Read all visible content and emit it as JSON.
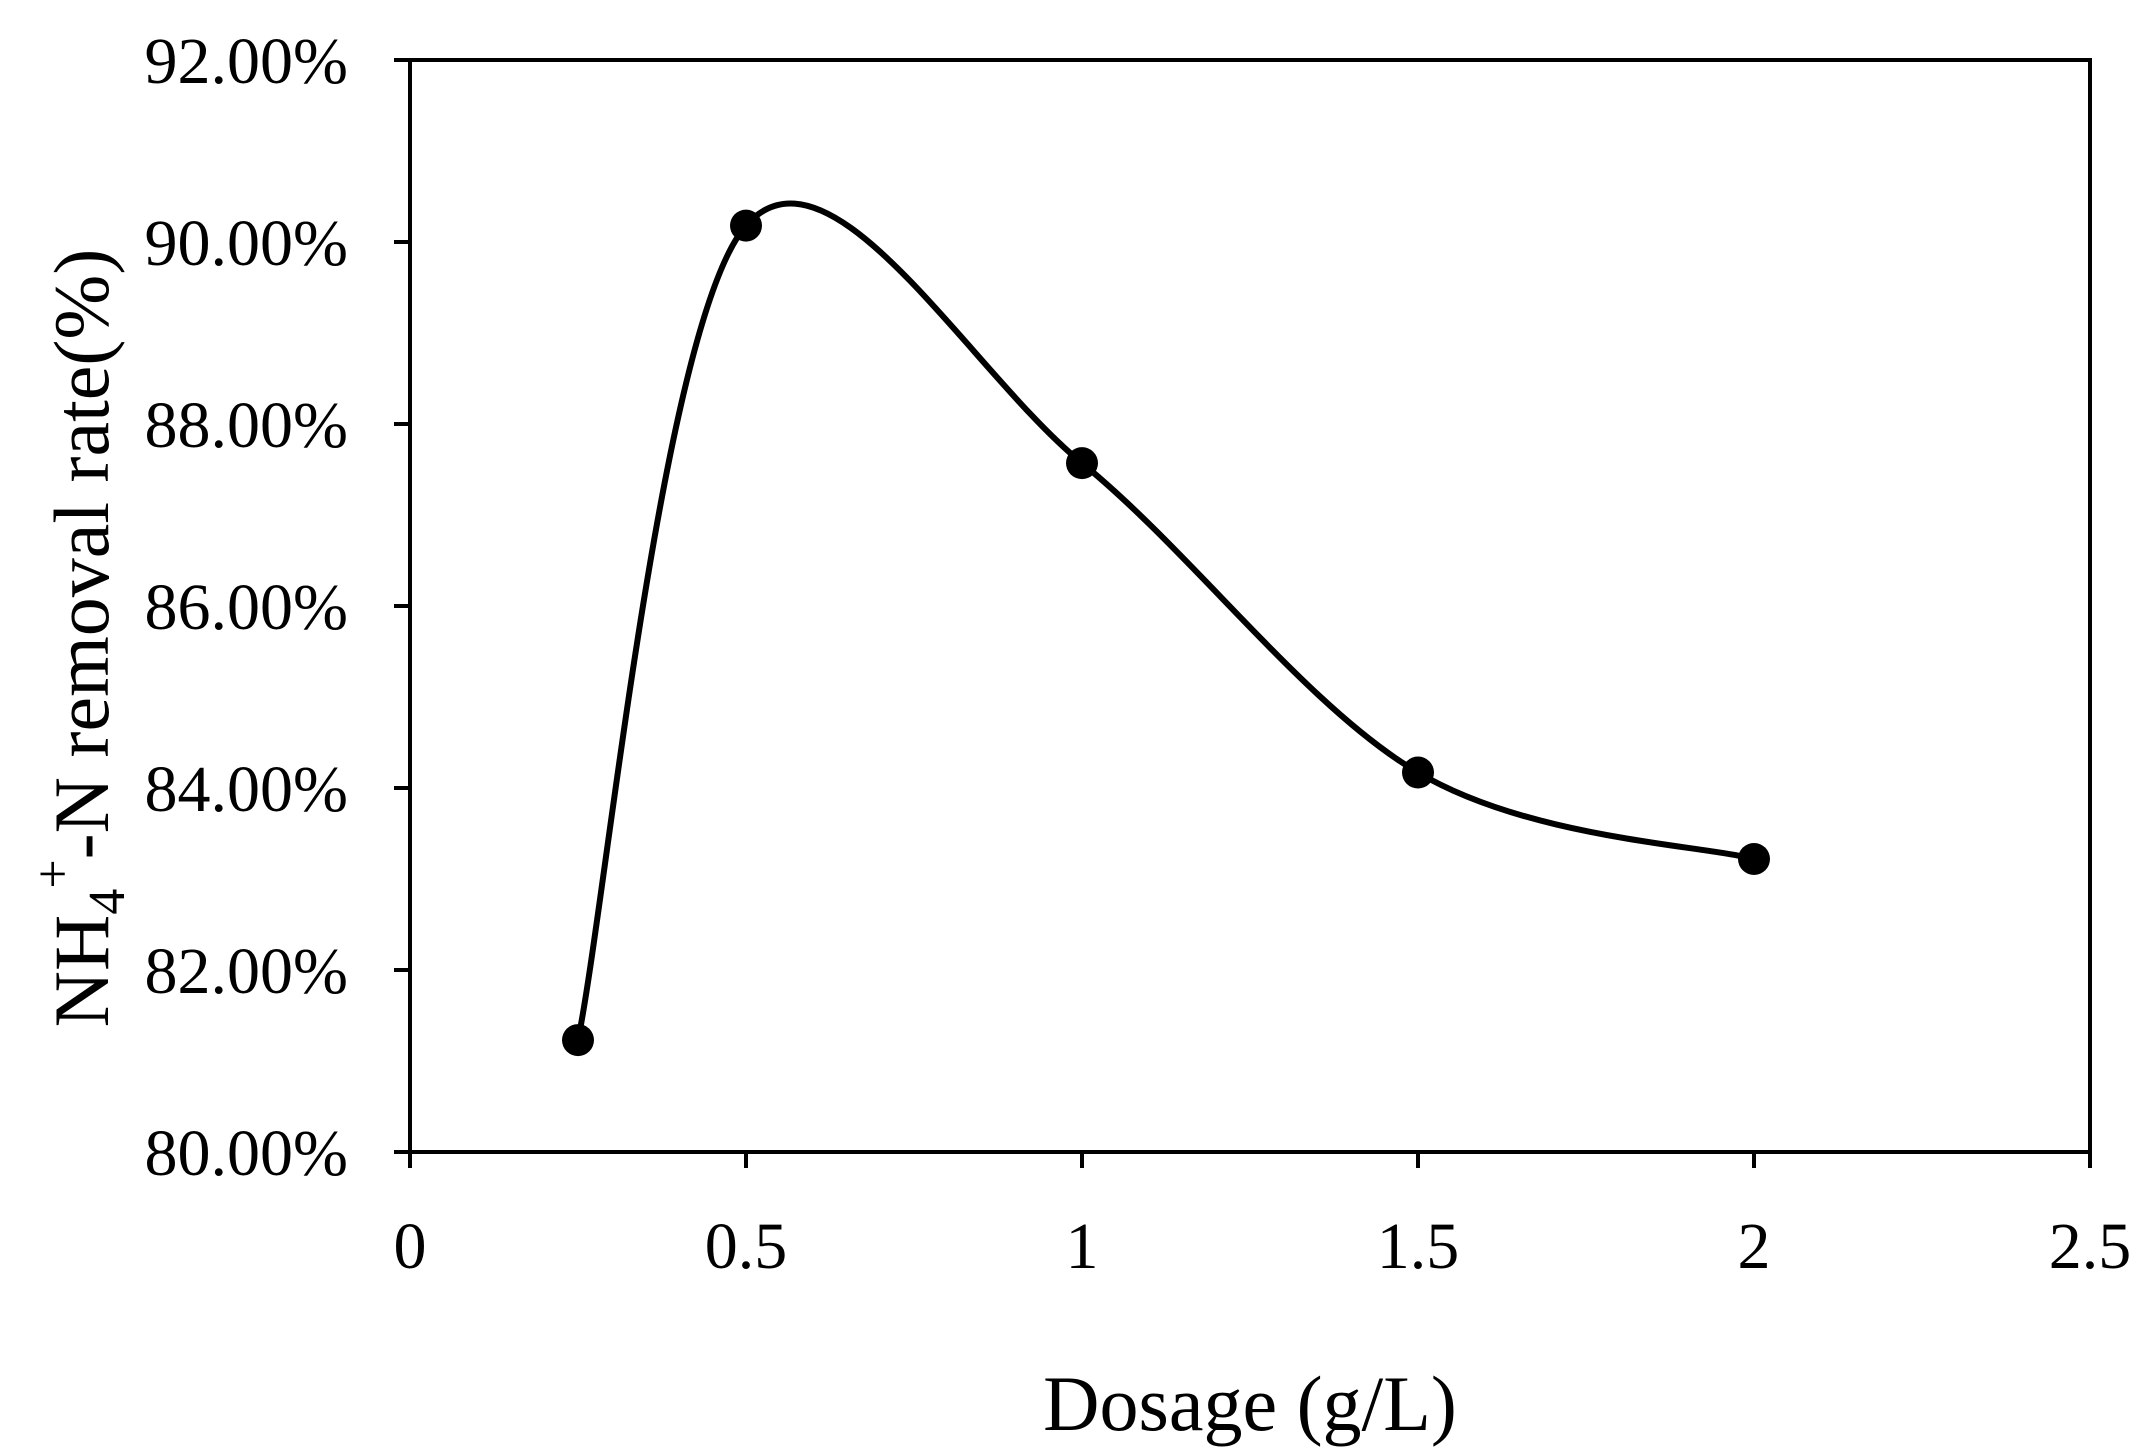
{
  "chart_data": {
    "type": "scatter",
    "smooth_line": true,
    "title": "",
    "xlabel": "Dosage (g/L)",
    "ylabel": {
      "prefix": "NH",
      "subscript": "4",
      "superscript": "+",
      "suffix": "-N removal rate(%)"
    },
    "xlim": [
      0,
      2.5
    ],
    "ylim": [
      0.8,
      0.92
    ],
    "x_ticks": [
      0,
      0.5,
      1,
      1.5,
      2,
      2.5
    ],
    "x_tick_labels": [
      "0",
      "0.5",
      "1",
      "1.5",
      "2",
      "2.5"
    ],
    "y_ticks": [
      0.8,
      0.82,
      0.84,
      0.86,
      0.88,
      0.9,
      0.92
    ],
    "y_tick_labels": [
      "80.00%",
      "82.00%",
      "84.00%",
      "86.00%",
      "88.00%",
      "90.00%",
      "92.00%"
    ],
    "grid": false,
    "legend": "none",
    "series": [
      {
        "x": [
          0.25,
          0.5,
          1.0,
          1.5,
          2.0
        ],
        "y": [
          0.8123,
          0.9018,
          0.8757,
          0.8417,
          0.8322
        ],
        "color": "#000000"
      }
    ]
  }
}
